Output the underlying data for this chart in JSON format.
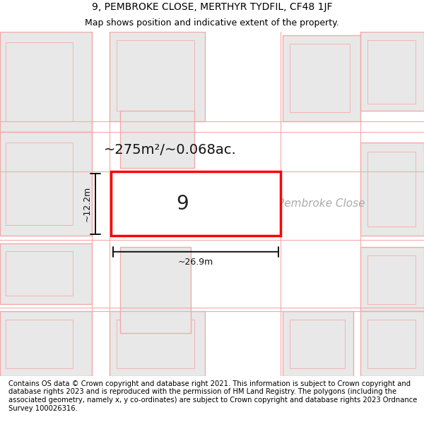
{
  "title_line1": "9, PEMBROKE CLOSE, MERTHYR TYDFIL, CF48 1JF",
  "title_line2": "Map shows position and indicative extent of the property.",
  "area_label": "~275m²/~0.068ac.",
  "width_label": "~26.9m",
  "height_label": "~12.2m",
  "number_label": "9",
  "street_label": "Pembroke Close",
  "footer_text": "Contains OS data © Crown copyright and database right 2021. This information is subject to Crown copyright and database rights 2023 and is reproduced with the permission of HM Land Registry. The polygons (including the associated geometry, namely x, y co-ordinates) are subject to Crown copyright and database rights 2023 Ordnance Survey 100026316.",
  "bg_color": "#ffffff",
  "map_bg": "#ffffff",
  "building_fill": "#e8e8e8",
  "building_edge_pink": "#f4aaaa",
  "highlight_fill": "#ffffff",
  "highlight_edge": "#ff0000",
  "dim_line_color": "#111111",
  "street_text_color": "#aaaaaa",
  "title_fontsize": 10,
  "subtitle_fontsize": 9,
  "footer_fontsize": 7.2,
  "number_fontsize": 20,
  "area_fontsize": 14,
  "dim_fontsize": 9,
  "street_fontsize": 11
}
